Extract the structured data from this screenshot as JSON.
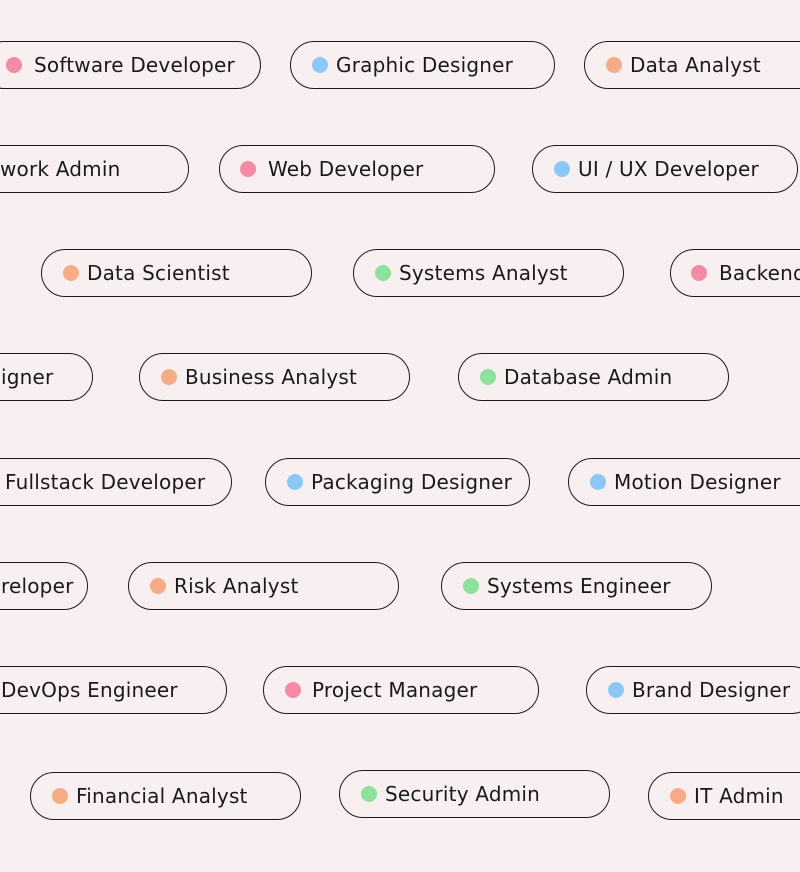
{
  "colors": {
    "pink": "#f48aa4",
    "blue": "#8cc8f7",
    "orange": "#f7ac88",
    "green": "#8ee09a"
  },
  "tags": [
    {
      "label": "Software Developer",
      "color": "pink"
    },
    {
      "label": "Graphic Designer",
      "color": "blue"
    },
    {
      "label": "Data Analyst",
      "color": "orange"
    },
    {
      "label": "work Admin",
      "color": "green"
    },
    {
      "label": "Web Developer",
      "color": "pink"
    },
    {
      "label": "UI / UX Developer",
      "color": "blue"
    },
    {
      "label": "Data Scientist",
      "color": "orange"
    },
    {
      "label": "Systems Analyst",
      "color": "green"
    },
    {
      "label": "Backend",
      "color": "pink"
    },
    {
      "label": "igner",
      "color": "blue"
    },
    {
      "label": "Business Analyst",
      "color": "orange"
    },
    {
      "label": "Database Admin",
      "color": "green"
    },
    {
      "label": "Fullstack Developer",
      "color": "pink"
    },
    {
      "label": "Packaging Designer",
      "color": "blue"
    },
    {
      "label": "Motion Designer",
      "color": "blue"
    },
    {
      "label": "reloper",
      "color": "pink"
    },
    {
      "label": "Risk Analyst",
      "color": "orange"
    },
    {
      "label": "Systems Engineer",
      "color": "green"
    },
    {
      "label": "DevOps Engineer",
      "color": "green"
    },
    {
      "label": "Project Manager",
      "color": "pink"
    },
    {
      "label": "Brand Designer",
      "color": "blue"
    },
    {
      "label": "Financial Analyst",
      "color": "orange"
    },
    {
      "label": "Security Admin",
      "color": "green"
    },
    {
      "label": "IT Admin",
      "color": "orange"
    }
  ]
}
